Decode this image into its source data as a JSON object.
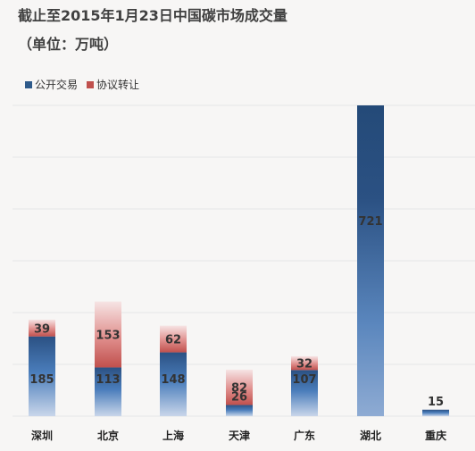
{
  "chart_data": {
    "type": "bar",
    "stacked": true,
    "title": "截止至2015年1月23日中国碳市场成交量",
    "subtitle": "（单位：万吨）",
    "categories": [
      "深圳",
      "北京",
      "上海",
      "天津",
      "广东",
      "湖北",
      "重庆"
    ],
    "series": [
      {
        "name": "公开交易",
        "color": "#2e5a8a",
        "values": [
          185,
          113,
          148,
          26,
          107,
          721,
          15
        ]
      },
      {
        "name": "协议转让",
        "color": "#c0504d",
        "values": [
          39,
          153,
          62,
          82,
          32,
          null,
          null
        ]
      }
    ],
    "legend_position": "top-left",
    "grid": true
  }
}
